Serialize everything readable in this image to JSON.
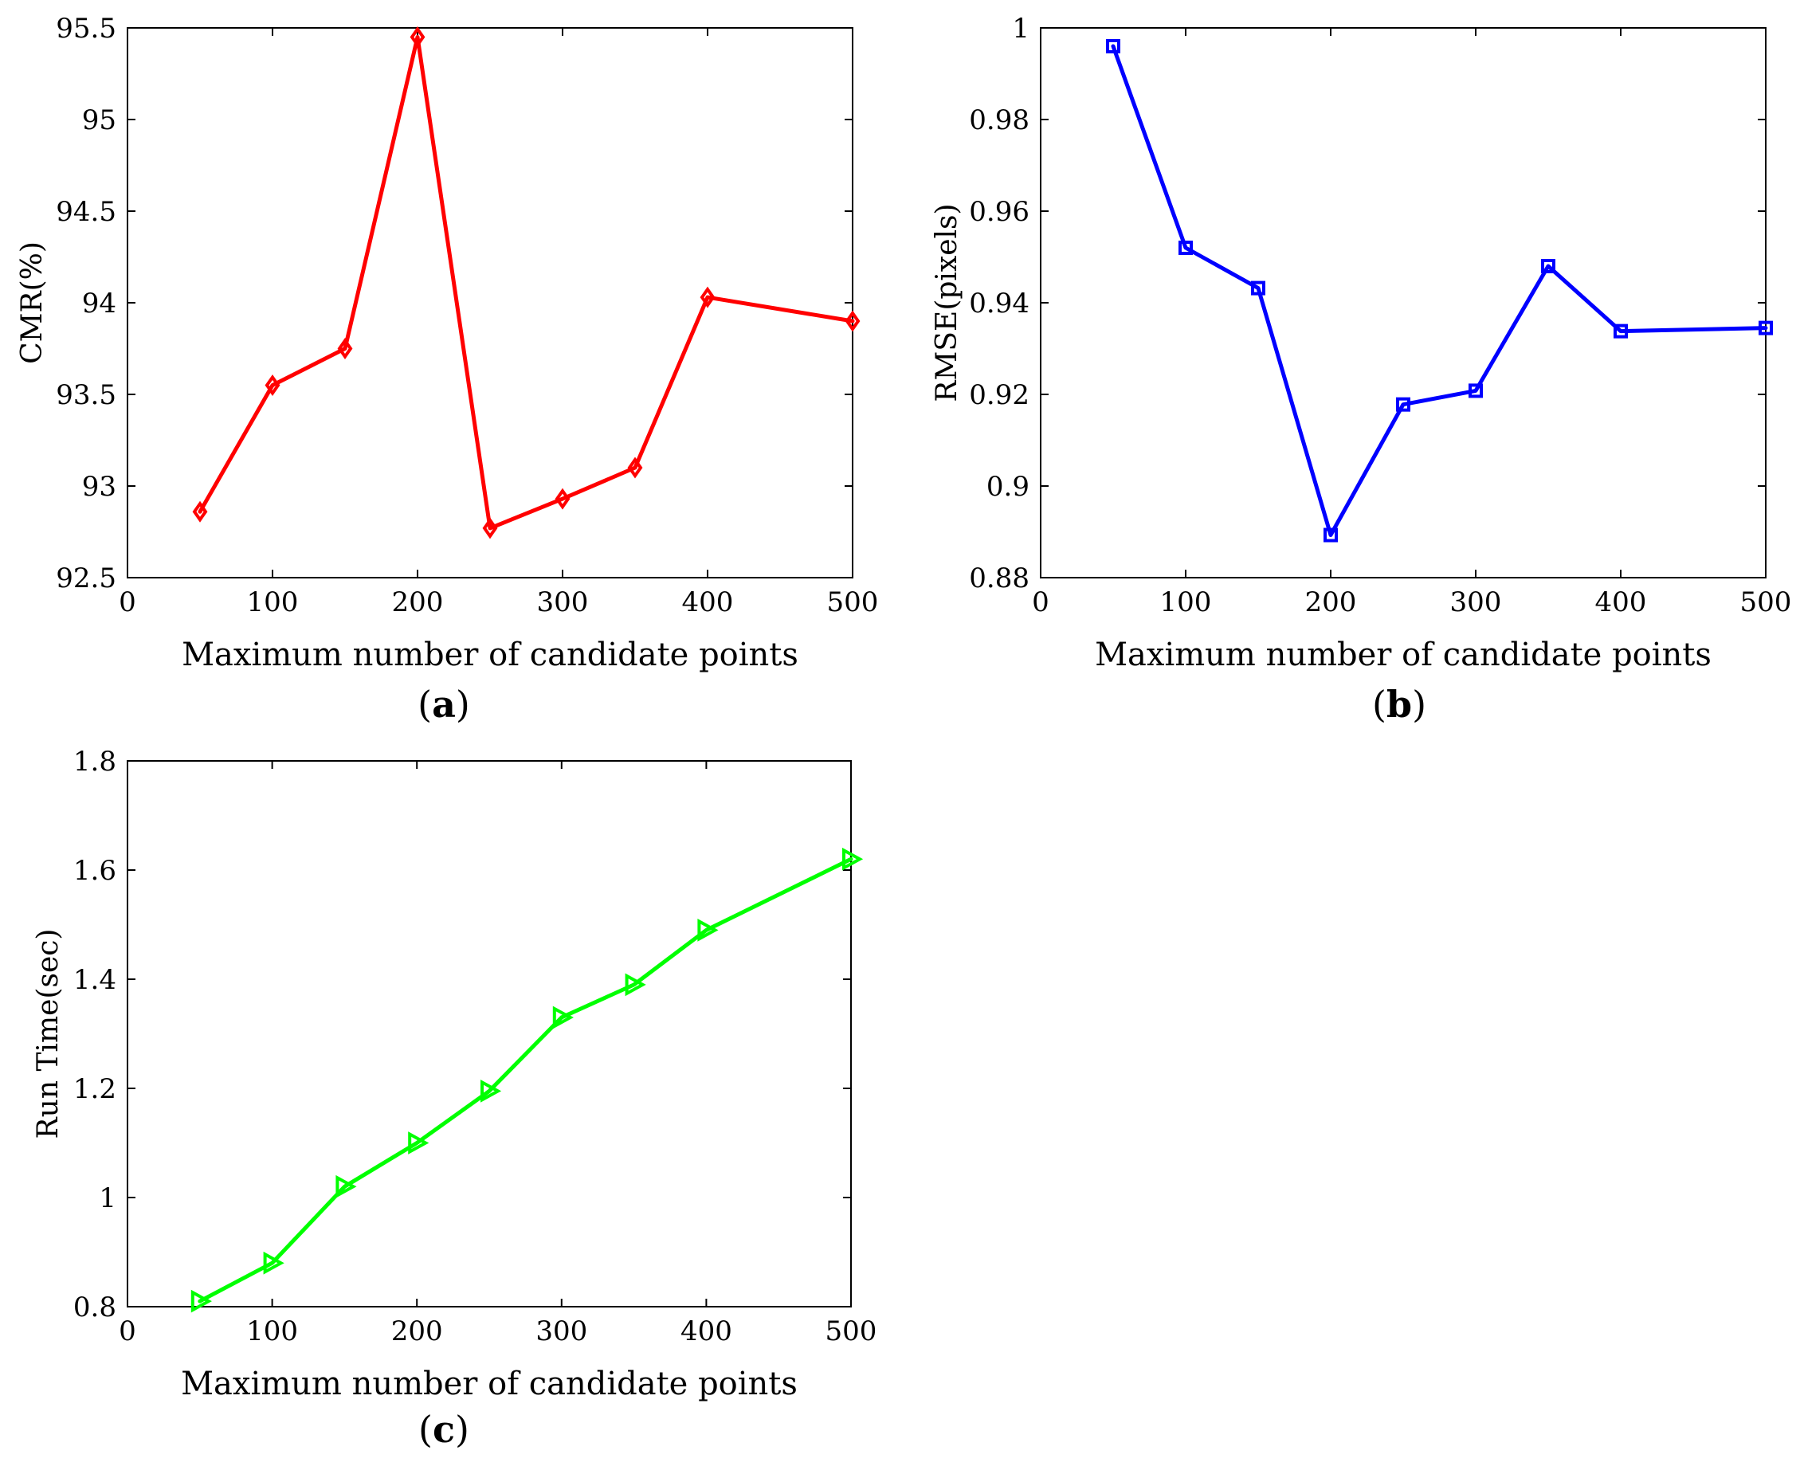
{
  "chart_data": [
    {
      "id": "a",
      "type": "line",
      "caption": "a",
      "title": "",
      "xlabel": "Maximum number of candidate points",
      "ylabel": "CMR(%)",
      "xlim": [
        0,
        500
      ],
      "ylim": [
        92.5,
        95.5
      ],
      "xticks": [
        "0",
        "100",
        "200",
        "300",
        "400",
        "500"
      ],
      "yticks": [
        "92.5",
        "93",
        "93.5",
        "94",
        "94.5",
        "95",
        "95.5"
      ],
      "grid": false,
      "series": [
        {
          "name": "CMR",
          "color": "#ff0000",
          "marker": "diamond",
          "x": [
            50,
            100,
            150,
            200,
            250,
            300,
            350,
            400,
            500
          ],
          "y": [
            92.86,
            93.55,
            93.75,
            95.45,
            92.77,
            92.93,
            93.1,
            94.03,
            93.9
          ]
        }
      ]
    },
    {
      "id": "b",
      "type": "line",
      "caption": "b",
      "title": "",
      "xlabel": "Maximum number of candidate points",
      "ylabel": "RMSE(pixels)",
      "xlim": [
        0,
        500
      ],
      "ylim": [
        0.88,
        1.0
      ],
      "xticks": [
        "0",
        "100",
        "200",
        "300",
        "400",
        "500"
      ],
      "yticks": [
        "0.88",
        "0.9",
        "0.92",
        "0.94",
        "0.96",
        "0.98",
        "1"
      ],
      "grid": false,
      "series": [
        {
          "name": "RMSE",
          "color": "#0000ff",
          "marker": "square",
          "x": [
            50,
            100,
            150,
            200,
            250,
            300,
            350,
            400,
            500
          ],
          "y": [
            0.996,
            0.952,
            0.9432,
            0.8893,
            0.9178,
            0.9208,
            0.948,
            0.9338,
            0.9345
          ]
        }
      ]
    },
    {
      "id": "c",
      "type": "line",
      "caption": "c",
      "title": "",
      "xlabel": "Maximum number of candidate points",
      "ylabel": "Run Time(sec)",
      "xlim": [
        0,
        500
      ],
      "ylim": [
        0.8,
        1.8
      ],
      "xticks": [
        "0",
        "100",
        "200",
        "300",
        "400",
        "500"
      ],
      "yticks": [
        "0.8",
        "1",
        "1.2",
        "1.4",
        "1.6",
        "1.8"
      ],
      "grid": false,
      "series": [
        {
          "name": "Run Time",
          "color": "#00ff00",
          "marker": "triangle-right",
          "x": [
            50,
            100,
            150,
            200,
            250,
            300,
            350,
            400,
            500
          ],
          "y": [
            0.81,
            0.88,
            1.02,
            1.1,
            1.195,
            1.33,
            1.39,
            1.49,
            1.62
          ]
        }
      ]
    }
  ]
}
